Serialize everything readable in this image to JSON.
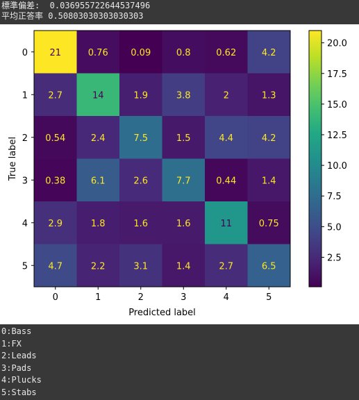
{
  "header": {
    "std_line": "標準偏差:  0.036955722644537496",
    "acc_line": "平均正答率 0.50803030303030303"
  },
  "chart_data": {
    "type": "heatmap",
    "title": "",
    "xlabel": "Predicted label",
    "ylabel": "True label",
    "x_categories": [
      "0",
      "1",
      "2",
      "3",
      "4",
      "5"
    ],
    "y_categories": [
      "0",
      "1",
      "2",
      "3",
      "4",
      "5"
    ],
    "values": [
      [
        21,
        0.76,
        0.09,
        0.8,
        0.62,
        4.2
      ],
      [
        2.7,
        14,
        1.9,
        3.8,
        2,
        1.3
      ],
      [
        0.54,
        2.4,
        7.5,
        1.5,
        4.4,
        4.2
      ],
      [
        0.38,
        6.1,
        2.6,
        7.7,
        0.44,
        1.4
      ],
      [
        2.9,
        1.8,
        1.6,
        1.6,
        11,
        0.75
      ],
      [
        4.7,
        2.2,
        3.1,
        1.4,
        2.7,
        6.5
      ]
    ],
    "cell_labels": [
      [
        "21",
        "0.76",
        "0.09",
        "0.8",
        "0.62",
        "4.2"
      ],
      [
        "2.7",
        "14",
        "1.9",
        "3.8",
        "2",
        "1.3"
      ],
      [
        "0.54",
        "2.4",
        "7.5",
        "1.5",
        "4.4",
        "4.2"
      ],
      [
        "0.38",
        "6.1",
        "2.6",
        "7.7",
        "0.44",
        "1.4"
      ],
      [
        "2.9",
        "1.8",
        "1.6",
        "1.6",
        "11",
        "0.75"
      ],
      [
        "4.7",
        "2.2",
        "3.1",
        "1.4",
        "2.7",
        "6.5"
      ]
    ],
    "colormap": "viridis",
    "vmin": 0.09,
    "vmax": 21,
    "colorbar_ticks": [
      2.5,
      5.0,
      7.5,
      10.0,
      12.5,
      15.0,
      17.5,
      20.0
    ],
    "colorbar_tick_labels": [
      "2.5",
      "5.0",
      "7.5",
      "10.0",
      "12.5",
      "15.0",
      "17.5",
      "20.0"
    ],
    "text_color_light": "#fde725",
    "text_color_dark": "#440154"
  },
  "legend": {
    "items": [
      "0:Bass",
      "1:FX",
      "2:Leads",
      "3:Pads",
      "4:Plucks",
      "5:Stabs"
    ]
  }
}
